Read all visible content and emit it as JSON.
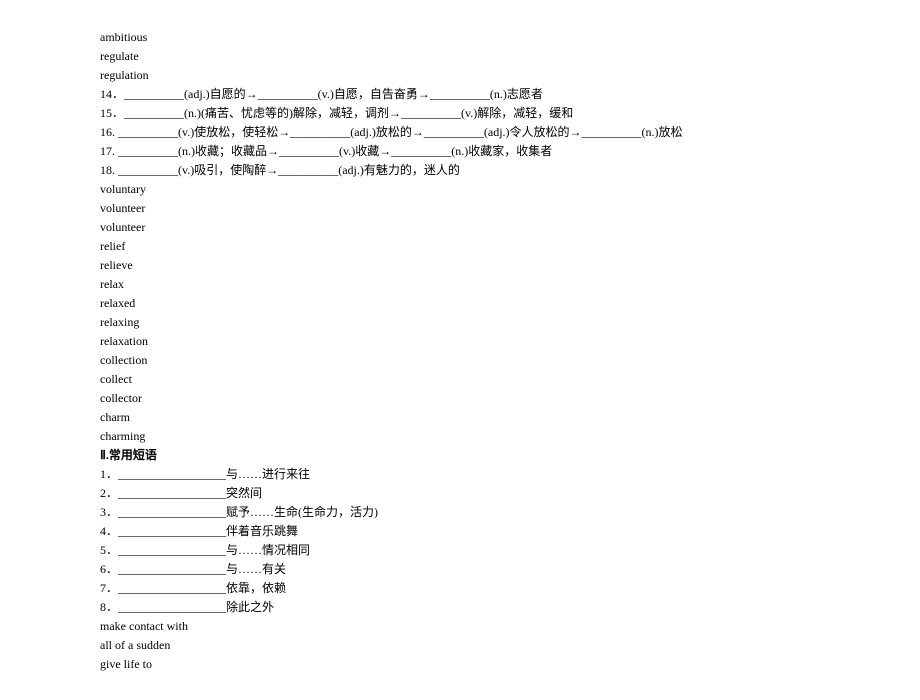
{
  "words1": [
    "ambitious",
    "regulate",
    "regulation"
  ],
  "exercises": [
    "14．__________(adj.)自愿的→__________(v.)自愿，自告奋勇→__________(n.)志愿者",
    "15．__________(n.)(痛苦、忧虑等的)解除，减轻，调剂→__________(v.)解除，减轻，缓和",
    "16. __________(v.)使放松，使轻松→__________(adj.)放松的→__________(adj.)令人放松的→__________(n.)放松",
    "17. __________(n.)收藏；收藏品→__________(v.)收藏→__________(n.)收藏家，收集者",
    "18. __________(v.)吸引，使陶醉→__________(adj.)有魅力的，迷人的"
  ],
  "words2": [
    "voluntary",
    "volunteer",
    "volunteer",
    "relief",
    "relieve",
    "relax",
    "relaxed",
    "relaxing",
    "relaxation",
    "collection",
    "collect",
    "collector",
    "charm",
    "charming"
  ],
  "sectionHeader": "Ⅱ.常用短语",
  "phrases": [
    "1．__________________与……进行来往",
    "2．__________________突然间",
    "3．__________________赋予……生命(生命力，活力)",
    "4．__________________伴着音乐跳舞",
    "5．__________________与……情况相同",
    "6．__________________与……有关",
    "7．__________________依靠，依赖",
    "8．__________________除此之外"
  ],
  "answers": [
    "make contact with",
    "all of a sudden",
    "give life to"
  ]
}
